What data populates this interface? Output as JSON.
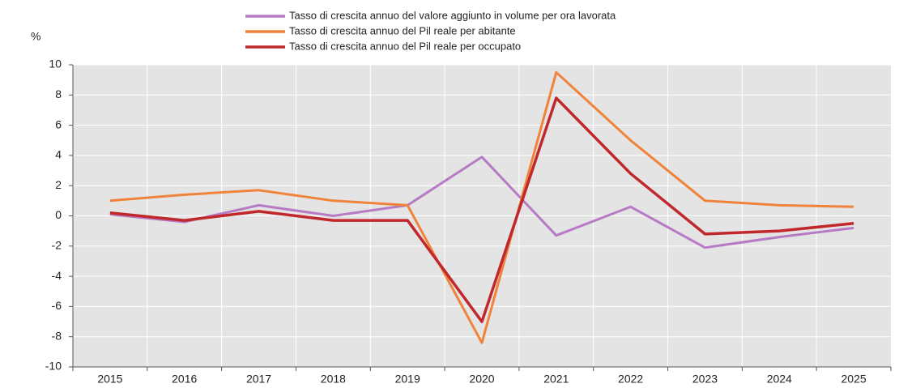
{
  "chart_data": {
    "type": "line",
    "y_label": "%",
    "categories": [
      "2015",
      "2016",
      "2017",
      "2018",
      "2019",
      "2020",
      "2021",
      "2022",
      "2023",
      "2024",
      "2025"
    ],
    "series": [
      {
        "name": "Tasso di crescita annuo del valore aggiunto in volume per ora lavorata",
        "color": "#b77ac4",
        "values": [
          0.1,
          -0.4,
          0.7,
          0,
          0.7,
          3.9,
          -1.3,
          0.6,
          -2.1,
          -1.4,
          -0.8
        ]
      },
      {
        "name": "Tasso di crescita annuo del Pil reale per abitante",
        "color": "#f08339",
        "values": [
          1.0,
          1.4,
          1.7,
          1.0,
          0.7,
          -8.4,
          9.5,
          5.0,
          1.0,
          0.7,
          0.6
        ]
      },
      {
        "name": "Tasso di crescita annuo del Pil reale per occupato",
        "color": "#c0282c",
        "values": [
          0.2,
          -0.3,
          0.3,
          -0.3,
          -0.3,
          -7.0,
          7.8,
          2.8,
          -1.2,
          -1.0,
          -0.5
        ]
      }
    ],
    "ylim": [
      -10,
      10
    ],
    "yticks": [
      -10,
      -8,
      -6,
      -4,
      -2,
      0,
      2,
      4,
      6,
      8,
      10
    ],
    "grid": true
  }
}
